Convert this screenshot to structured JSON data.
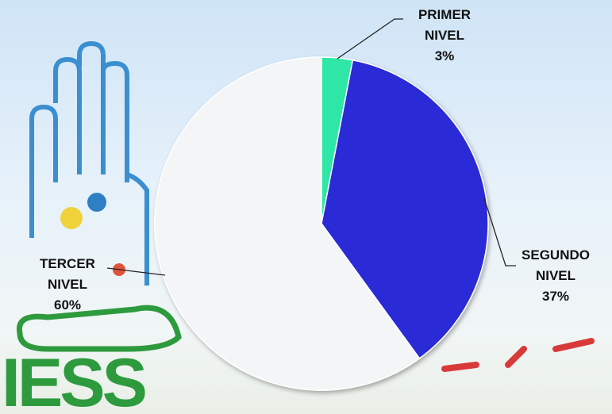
{
  "chart_data": {
    "type": "pie",
    "categories": [
      "PRIMER NIVEL",
      "SEGUNDO NIVEL",
      "TERCER NIVEL"
    ],
    "values": [
      3,
      37,
      60
    ],
    "value_labels": [
      "3%",
      "37%",
      "60%"
    ],
    "colors": [
      "#2fe6a6",
      "#2b2bd6",
      "#f4f5f7"
    ]
  },
  "background": {
    "logo": "IESS"
  }
}
